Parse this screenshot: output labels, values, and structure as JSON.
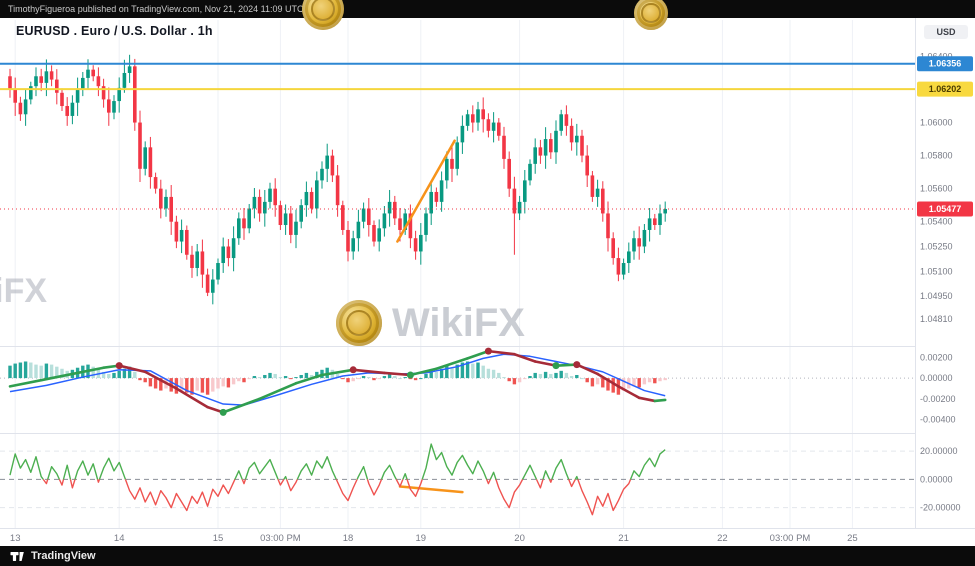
{
  "meta": {
    "attribution": "TimothyFigueroa published on TradingView.com, Nov 21, 2024 11:09 UTC+8"
  },
  "header": {
    "symbol_title": "EURUSD . Euro / U.S. Dollar . 1h",
    "currency_badge": "USD"
  },
  "watermark": {
    "text": "WikiFX",
    "coin_color": "#d7a21e"
  },
  "footer": {
    "brand": "TradingView"
  },
  "chart_data": [
    {
      "type": "candlestick",
      "title": "EURUSD . Euro / U.S. Dollar . 1h",
      "symbol": "EURUSD",
      "timeframe": "1h",
      "ylim": [
        1.0466,
        1.0656
      ],
      "up_color": "#089981",
      "down_color": "#f23645",
      "first_open": 1.0628,
      "closes": [
        1.062,
        1.0612,
        1.0605,
        1.0614,
        1.0622,
        1.0628,
        1.0624,
        1.0631,
        1.0626,
        1.0618,
        1.061,
        1.0604,
        1.0612,
        1.062,
        1.0627,
        1.0632,
        1.0628,
        1.0622,
        1.0614,
        1.0606,
        1.0613,
        1.0621,
        1.063,
        1.0634,
        1.06,
        1.0572,
        1.0585,
        1.0567,
        1.056,
        1.0548,
        1.0555,
        1.054,
        1.0528,
        1.0535,
        1.052,
        1.0512,
        1.0522,
        1.0508,
        1.0497,
        1.0505,
        1.0515,
        1.0525,
        1.0518,
        1.053,
        1.0542,
        1.0536,
        1.0548,
        1.0555,
        1.0545,
        1.0552,
        1.056,
        1.055,
        1.0538,
        1.0545,
        1.0532,
        1.054,
        1.055,
        1.0558,
        1.0548,
        1.0565,
        1.0572,
        1.058,
        1.0568,
        1.055,
        1.0535,
        1.0522,
        1.053,
        1.054,
        1.0548,
        1.0538,
        1.0528,
        1.0536,
        1.0545,
        1.0552,
        1.0542,
        1.0535,
        1.0545,
        1.053,
        1.0522,
        1.0532,
        1.0545,
        1.0558,
        1.0552,
        1.0565,
        1.0578,
        1.0572,
        1.0588,
        1.0598,
        1.0605,
        1.06,
        1.0608,
        1.0602,
        1.0595,
        1.06,
        1.0592,
        1.0578,
        1.056,
        1.0545,
        1.0552,
        1.0565,
        1.0575,
        1.0585,
        1.058,
        1.059,
        1.0582,
        1.0595,
        1.0605,
        1.0598,
        1.0588,
        1.0592,
        1.058,
        1.0568,
        1.0555,
        1.056,
        1.0545,
        1.053,
        1.0518,
        1.0508,
        1.0515,
        1.0522,
        1.053,
        1.0525,
        1.0535,
        1.0542,
        1.0538,
        1.0545,
        1.05477
      ],
      "wick_pattern": [
        0.0005,
        0.0008,
        0.0004,
        0.0007,
        0.0003,
        0.0006
      ],
      "wick_overrides": [
        {
          "i": 22,
          "high": 1.0638
        },
        {
          "i": 23,
          "high": 1.0641
        },
        {
          "i": 38,
          "low": 1.0495
        },
        {
          "i": 97,
          "low": 1.052
        },
        {
          "i": 117,
          "low": 1.0504
        }
      ],
      "levels": [
        {
          "text": "1.06356",
          "value": 1.06356,
          "line_color": "#2d87d3",
          "badge_bg": "#2d87d3",
          "badge_fg": "#ffffff",
          "style": "solid"
        },
        {
          "text": "1.06202",
          "value": 1.06202,
          "line_color": "#f5d63d",
          "badge_bg": "#f8d93f",
          "badge_fg": "#4a3b00",
          "style": "solid"
        },
        {
          "text": "1.05477",
          "value": 1.05477,
          "line_color": "#f23645",
          "badge_bg": "#f23645",
          "badge_fg": "#ffffff",
          "style": "dotted"
        }
      ],
      "trendline": {
        "from": {
          "i": 74.5,
          "price": 1.0528
        },
        "to": {
          "i": 85.5,
          "price": 1.0589
        },
        "color": "#f7931a"
      },
      "y_axis_labels": [
        {
          "text": "1.06400",
          "value": 1.064
        },
        {
          "text": "1.06200",
          "value": 1.062
        },
        {
          "text": "1.06000",
          "value": 1.06
        },
        {
          "text": "1.05800",
          "value": 1.058
        },
        {
          "text": "1.05600",
          "value": 1.056
        },
        {
          "text": "1.05400",
          "value": 1.054
        },
        {
          "text": "1.05250",
          "value": 1.0525
        },
        {
          "text": "1.05100",
          "value": 1.051
        },
        {
          "text": "1.04950",
          "value": 1.0495
        },
        {
          "text": "1.04810",
          "value": 1.0481
        }
      ],
      "x_labels": [
        {
          "text": "13",
          "i": 1
        },
        {
          "text": "14",
          "i": 21
        },
        {
          "text": "15",
          "i": 40
        },
        {
          "text": "03:00 PM",
          "i": 52
        },
        {
          "text": "18",
          "i": 65
        },
        {
          "text": "19",
          "i": 79
        },
        {
          "text": "20",
          "i": 98
        },
        {
          "text": "21",
          "i": 118
        },
        {
          "text": "22",
          "i": 137
        },
        {
          "text": "03:00 PM",
          "i": 150
        },
        {
          "text": "25",
          "i": 162
        }
      ]
    },
    {
      "type": "macd",
      "ylim": [
        -0.005,
        0.0029
      ],
      "colors": {
        "pos": "#26a69a",
        "pos_weak": "#b7dfdb",
        "neg": "#ef5350",
        "neg_weak": "#f8c9cc"
      },
      "signal_color": "#2962ff",
      "main_up_color": "#2f9e4f",
      "main_down_color": "#a62b38",
      "dot_up_color": "#2f9e4f",
      "dot_down_color": "#a62b38",
      "histogram": [
        0.0012,
        0.0014,
        0.0015,
        0.0016,
        0.0015,
        0.0013,
        0.0012,
        0.0014,
        0.0013,
        0.0011,
        0.0009,
        0.0007,
        0.0008,
        0.001,
        0.0012,
        0.0013,
        0.0011,
        0.0009,
        0.0006,
        0.0004,
        0.0005,
        0.0007,
        0.0009,
        0.0011,
        0.0006,
        -0.0002,
        -0.0004,
        -0.0008,
        -0.001,
        -0.0012,
        -0.001,
        -0.0013,
        -0.0015,
        -0.0012,
        -0.0014,
        -0.0016,
        -0.0012,
        -0.0014,
        -0.0016,
        -0.0013,
        -0.001,
        -0.0008,
        -0.0009,
        -0.0006,
        -0.0003,
        -0.0004,
        -0.0001,
        0.0002,
        0.0001,
        0.0003,
        0.0005,
        0.0004,
        0.0001,
        0.0002,
        -0.0001,
        0.0001,
        0.0003,
        0.0005,
        0.0003,
        0.0006,
        0.0008,
        0.001,
        0.0008,
        0.0004,
        -0.0001,
        -0.0004,
        -0.0003,
        -0.0001,
        0.0002,
        0.0001,
        -0.0002,
        -0.0001,
        0.0002,
        0.0004,
        0.0002,
        0.0,
        0.0001,
        -0.0001,
        -0.0002,
        0.0,
        0.0004,
        0.0007,
        0.0006,
        0.0009,
        0.0012,
        0.001,
        0.0013,
        0.0015,
        0.0016,
        0.0014,
        0.0015,
        0.0012,
        0.0009,
        0.0008,
        0.0005,
        0.0001,
        -0.0003,
        -0.0006,
        -0.0004,
        -0.0001,
        0.0002,
        0.0005,
        0.0004,
        0.0006,
        0.0004,
        0.0005,
        0.0007,
        0.0005,
        0.0002,
        0.0003,
        0.0,
        -0.0004,
        -0.0008,
        -0.0006,
        -0.0009,
        -0.0012,
        -0.0014,
        -0.0016,
        -0.0012,
        -0.001,
        -0.0008,
        -0.0009,
        -0.0006,
        -0.0004,
        -0.0005,
        -0.0003,
        -0.0002
      ],
      "main_line": [
        [
          0,
          -0.0008
        ],
        [
          6,
          -0.0002
        ],
        [
          12,
          0.0004
        ],
        [
          18,
          0.001
        ],
        [
          21,
          0.0012
        ],
        [
          26,
          0.0006
        ],
        [
          32,
          -0.001
        ],
        [
          38,
          -0.0028
        ],
        [
          41,
          -0.0033
        ],
        [
          48,
          -0.002
        ],
        [
          55,
          -0.0005
        ],
        [
          60,
          0.0003
        ],
        [
          66,
          0.0008
        ],
        [
          72,
          0.0005
        ],
        [
          77,
          0.0003
        ],
        [
          82,
          0.0009
        ],
        [
          88,
          0.0019
        ],
        [
          92,
          0.0026
        ],
        [
          97,
          0.0023
        ],
        [
          101,
          0.0016
        ],
        [
          105,
          0.0012
        ],
        [
          109,
          0.0013
        ],
        [
          113,
          0.0004
        ],
        [
          117,
          -0.0008
        ],
        [
          121,
          -0.0019
        ],
        [
          124,
          -0.0022
        ],
        [
          126,
          -0.0021
        ]
      ],
      "signal_line": [
        [
          0,
          -0.0013
        ],
        [
          7,
          -0.0007
        ],
        [
          14,
          0.0001
        ],
        [
          21,
          0.0008
        ],
        [
          27,
          0.0007
        ],
        [
          34,
          -0.0012
        ],
        [
          41,
          -0.0025
        ],
        [
          45,
          -0.0026
        ],
        [
          51,
          -0.0017
        ],
        [
          58,
          -0.0006
        ],
        [
          64,
          0.0002
        ],
        [
          69,
          0.0005
        ],
        [
          75,
          0.0004
        ],
        [
          80,
          0.0005
        ],
        [
          86,
          0.0011
        ],
        [
          91,
          0.0019
        ],
        [
          95,
          0.0023
        ],
        [
          100,
          0.0021
        ],
        [
          105,
          0.0016
        ],
        [
          110,
          0.0011
        ],
        [
          114,
          0.0006
        ],
        [
          118,
          -0.0003
        ],
        [
          122,
          -0.0012
        ],
        [
          126,
          -0.0017
        ]
      ],
      "dots": [
        {
          "i": 21,
          "v": 0.0012,
          "dir": "down"
        },
        {
          "i": 41,
          "v": -0.0033,
          "dir": "up"
        },
        {
          "i": 66,
          "v": 0.0008,
          "dir": "down"
        },
        {
          "i": 77,
          "v": 0.0003,
          "dir": "up"
        },
        {
          "i": 92,
          "v": 0.0026,
          "dir": "down"
        },
        {
          "i": 105,
          "v": 0.0012,
          "dir": "up"
        },
        {
          "i": 109,
          "v": 0.0013,
          "dir": "down"
        }
      ],
      "y_axis_labels": [
        {
          "text": "0.00200",
          "value": 0.002
        },
        {
          "text": "0.00000",
          "value": 0
        },
        {
          "text": "-0.00200",
          "value": -0.002
        },
        {
          "text": "-0.00400",
          "value": -0.004
        }
      ]
    },
    {
      "type": "line",
      "name": "oscillator",
      "ylim": [
        -33,
        30
      ],
      "pos_color": "#4caf50",
      "neg_color": "#ef5350",
      "values": [
        3,
        18,
        8,
        14,
        5,
        16,
        2,
        -3,
        9,
        4,
        -4,
        10,
        -6,
        6,
        13,
        3,
        11,
        -2,
        8,
        15,
        6,
        12,
        2,
        -8,
        -14,
        -6,
        -16,
        -9,
        -18,
        -8,
        -13,
        -20,
        -10,
        -16,
        -22,
        -12,
        -17,
        -9,
        -19,
        -7,
        -12,
        -4,
        -10,
        -2,
        6,
        -3,
        8,
        12,
        4,
        9,
        14,
        5,
        -4,
        2,
        -8,
        -2,
        6,
        11,
        3,
        13,
        8,
        16,
        6,
        -2,
        -10,
        -15,
        -6,
        2,
        9,
        -3,
        -11,
        -4,
        5,
        10,
        2,
        -5,
        4,
        -7,
        -12,
        -3,
        8,
        25,
        14,
        19,
        9,
        3,
        12,
        17,
        10,
        4,
        13,
        6,
        -3,
        5,
        -6,
        -14,
        -20,
        -9,
        -4,
        3,
        10,
        2,
        -6,
        6,
        -2,
        8,
        14,
        4,
        -5,
        2,
        -8,
        -16,
        -25,
        -12,
        -19,
        -10,
        -22,
        -15,
        -7,
        -3,
        6,
        2,
        10,
        15,
        9,
        18,
        21
      ],
      "trendline": {
        "from": {
          "i": 75,
          "v": -5
        },
        "to": {
          "i": 87,
          "v": -9
        },
        "color": "#f7931a"
      },
      "y_axis_labels": [
        {
          "text": "20.00000",
          "value": 20
        },
        {
          "text": "0.00000",
          "value": 0
        },
        {
          "text": "-20.00000",
          "value": -20
        }
      ]
    }
  ]
}
